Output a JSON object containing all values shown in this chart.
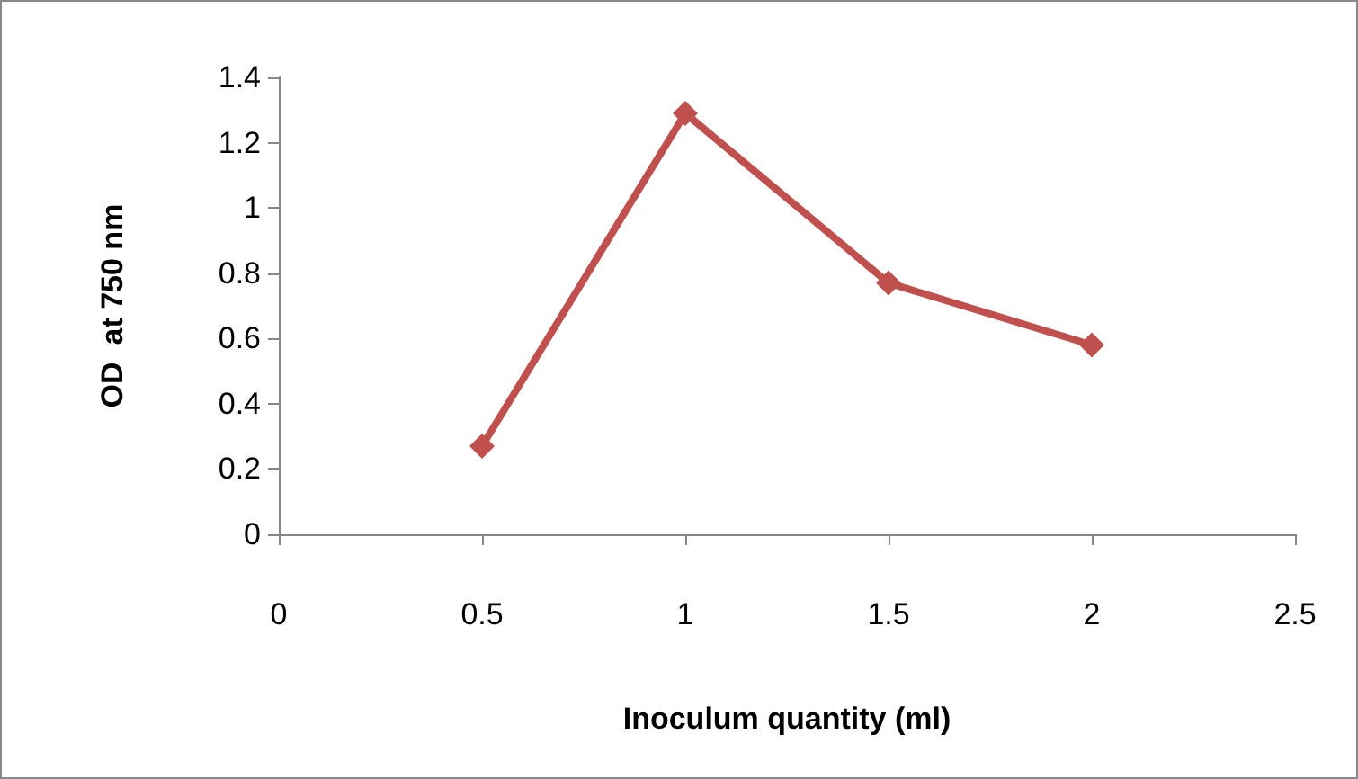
{
  "chart_data": {
    "type": "line",
    "xlabel": "Inoculum quantity (ml)",
    "ylabel": "OD  at 750 nm",
    "x": [
      0.5,
      1,
      1.5,
      2
    ],
    "series": [
      {
        "color": "#c0504d",
        "values": [
          0.27,
          1.29,
          0.77,
          0.58
        ]
      }
    ],
    "xlim": [
      0,
      2.5
    ],
    "xticks": [
      0,
      0.5,
      1,
      1.5,
      2,
      2.5
    ],
    "ylim": [
      0,
      1.4
    ],
    "yticks": [
      0,
      0.2,
      0.4,
      0.6,
      0.8,
      1,
      1.2,
      1.4
    ],
    "grid": false,
    "marker": "diamond",
    "line_style": "solid"
  }
}
